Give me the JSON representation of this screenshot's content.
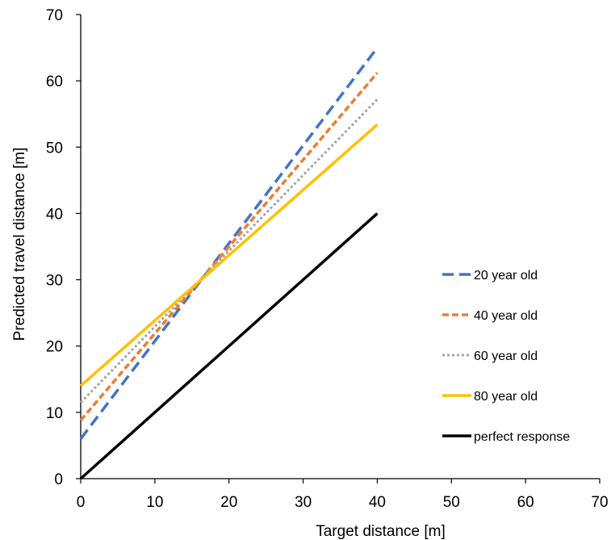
{
  "chart_data": {
    "type": "line",
    "title": "",
    "xlabel": "Target distance [m]",
    "ylabel": "Predicted travel distance [m]",
    "xlim": [
      0,
      70
    ],
    "ylim": [
      0,
      70
    ],
    "xticks": [
      0,
      10,
      20,
      30,
      40,
      50,
      60,
      70
    ],
    "yticks": [
      0,
      10,
      20,
      30,
      40,
      50,
      60,
      70
    ],
    "grid": false,
    "legend_position": "right",
    "series": [
      {
        "name": "20 year old",
        "x": [
          0,
          40
        ],
        "y": [
          6.0,
          65.0
        ],
        "color": "#4472c4",
        "dash": "dashed"
      },
      {
        "name": "40 year old",
        "x": [
          0,
          40
        ],
        "y": [
          8.8,
          61.2
        ],
        "color": "#ed7d31",
        "dash": "short-dashed"
      },
      {
        "name": "60 year old",
        "x": [
          0,
          40
        ],
        "y": [
          11.5,
          57.2
        ],
        "color": "#a5a5a5",
        "dash": "dotted"
      },
      {
        "name": "80 year old",
        "x": [
          0,
          40
        ],
        "y": [
          14.0,
          53.4
        ],
        "color": "#ffc000",
        "dash": "solid"
      },
      {
        "name": "perfect response",
        "x": [
          0,
          40
        ],
        "y": [
          0,
          40
        ],
        "color": "#000000",
        "dash": "solid"
      }
    ]
  }
}
